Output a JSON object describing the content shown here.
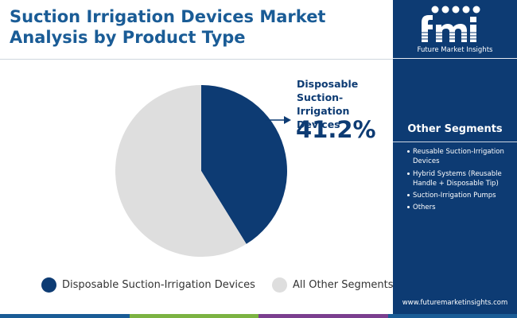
{
  "title": "Suction Irrigation Devices Market Analysis by Product Type",
  "callout": {
    "label": "Disposable Suction-Irrigation Devices",
    "value": "41.2%"
  },
  "chart_data": {
    "type": "pie",
    "title": "Suction Irrigation Devices Market Analysis by Product Type",
    "slices": [
      {
        "label": "Disposable Suction-Irrigation Devices",
        "value": 41.2,
        "color": "#0d3b73"
      },
      {
        "label": "All Other Segments",
        "value": 58.8,
        "color": "#dedede"
      }
    ],
    "start_angle_deg": 0,
    "direction": "clockwise",
    "legend": "bottom"
  },
  "legend": [
    {
      "label": "Disposable Suction-Irrigation Devices",
      "color": "#0d3b73"
    },
    {
      "label": "All Other Segments",
      "color": "#dedede"
    }
  ],
  "sidebar": {
    "brand_name": "Future Market Insights",
    "logo_text": "fmi",
    "segments_heading": "Other Segments",
    "segments": [
      "Reusable Suction-Irrigation Devices",
      "Hybrid Systems (Reusable Handle + Disposable Tip)",
      "Suction-Irrigation Pumps",
      "Others"
    ],
    "website": "www.futuremarketinsights.com"
  },
  "colors": {
    "primary": "#0d3b73",
    "title": "#1a5c96",
    "bottom_bar": [
      "#1a5c96",
      "#7cb342",
      "#7b3f8f",
      "#1a5c96"
    ]
  }
}
